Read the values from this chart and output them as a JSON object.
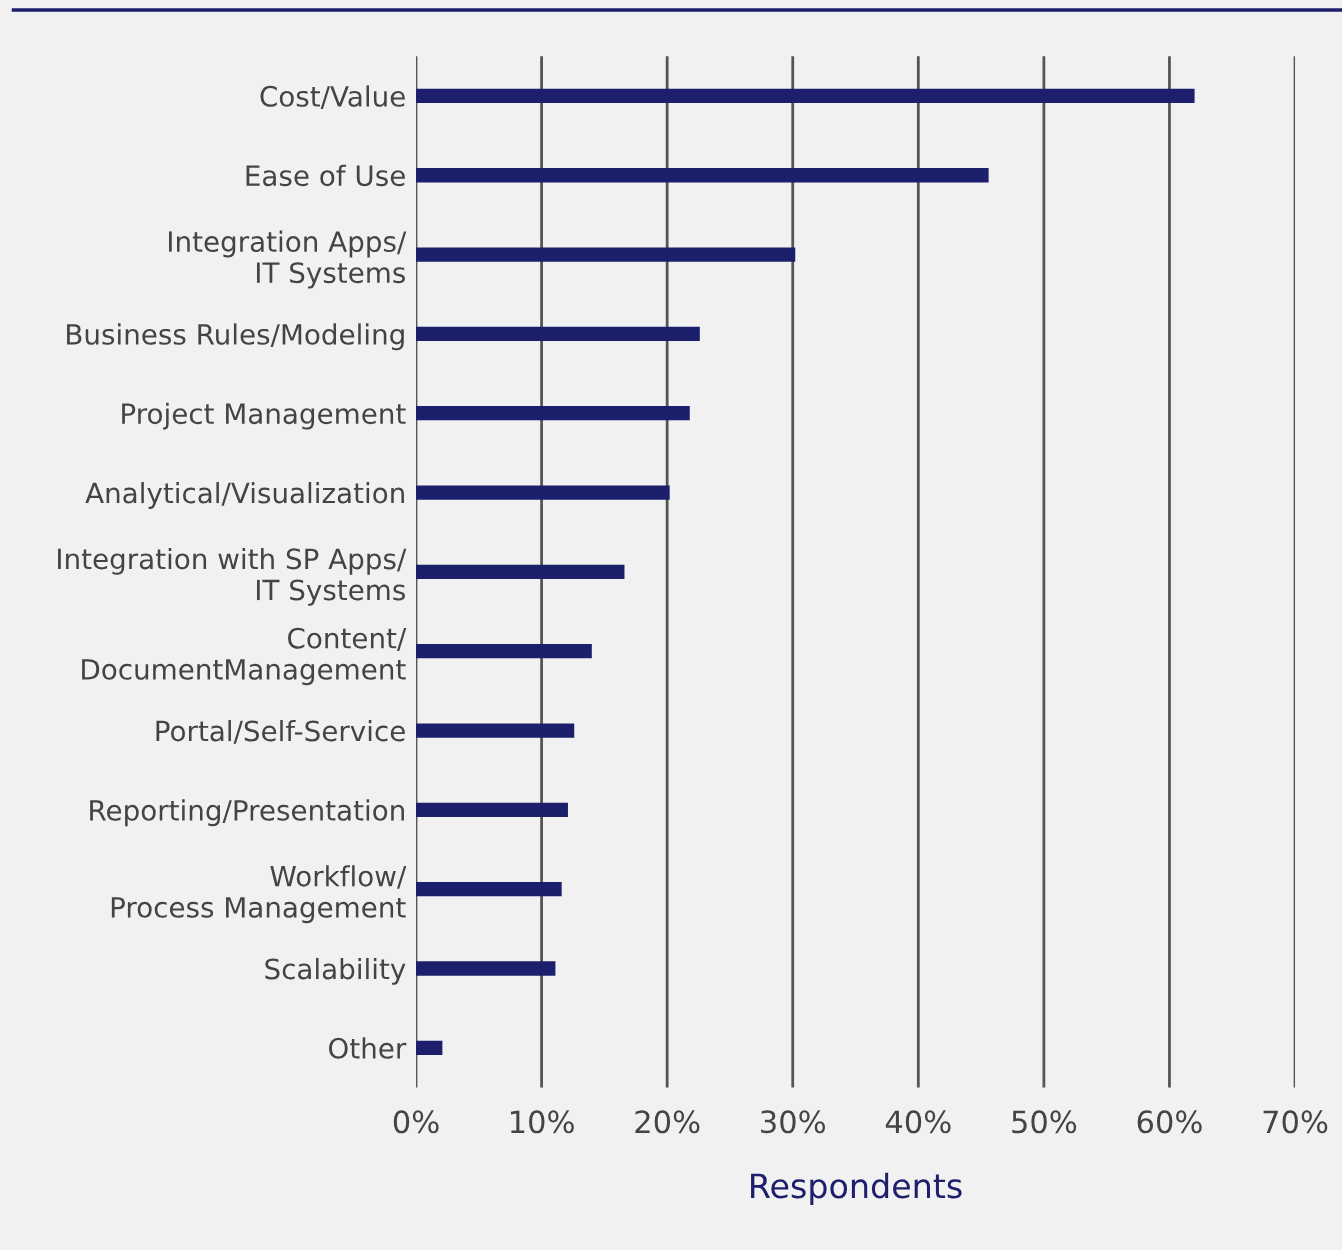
{
  "chart_data": {
    "type": "bar",
    "orientation": "horizontal",
    "xlabel": "Respondents",
    "categories": [
      "Cost/Value",
      "Ease of Use",
      "Integration Apps/\nIT Systems",
      "Business Rules/Modeling",
      "Project Management",
      "Analytical/Visualization",
      "Integration with SP Apps/\nIT Systems",
      "Content/\nDocumentManagement",
      "Portal/Self-Service",
      "Reporting/Presentation",
      "Workflow/\nProcess Management",
      "Scalability",
      "Other"
    ],
    "values": [
      62,
      45.6,
      30.2,
      22.6,
      21.8,
      20.2,
      16.6,
      14,
      12.6,
      12.1,
      11.6,
      11.1,
      2.1
    ],
    "color": "#1c1f6b",
    "xlim": [
      0,
      70
    ],
    "xticks": [
      {
        "value": 0,
        "label": "0%"
      },
      {
        "value": 10,
        "label": "10%"
      },
      {
        "value": 20,
        "label": "20%"
      },
      {
        "value": 30,
        "label": "30%"
      },
      {
        "value": 40,
        "label": "40%"
      },
      {
        "value": 50,
        "label": "50%"
      },
      {
        "value": 60,
        "label": "60%"
      },
      {
        "value": 70,
        "label": "70%"
      }
    ],
    "grid": "x",
    "legend": false
  }
}
